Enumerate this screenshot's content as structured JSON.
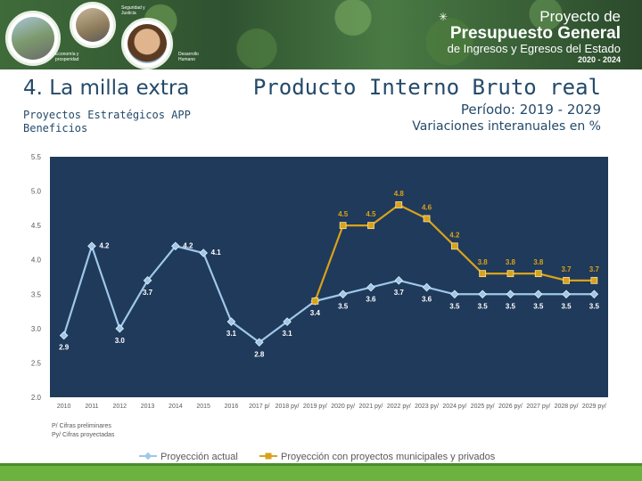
{
  "banner": {
    "tags": [
      "Seguridad y Justicia",
      "Economía y prosperidad",
      "Desarrollo Humano"
    ],
    "brand_line1": "Proyecto de",
    "brand_line2": "Presupuesto General",
    "brand_line3": "de Ingresos y Egresos del Estado",
    "brand_line4": "2020 - 2024"
  },
  "section_title": "4. La milla extra",
  "subtitle_line1": "Proyectos Estratégicos APP",
  "subtitle_line2": "Beneficios",
  "title": "Producto Interno Bruto real",
  "period_line": "Período: 2019 - 2029",
  "variation_line": "Variaciones interanuales en %",
  "colors": {
    "plot_bg": "#1f3a5a",
    "series_actual": "#9fc7ea",
    "series_app": "#d9a21a",
    "axis_text": "#595959",
    "header_text": "#244a6a",
    "footer_green": "#6bb33e"
  },
  "chart_data": {
    "type": "line",
    "x": [
      "2010",
      "2011",
      "2012",
      "2013",
      "2014",
      "2015",
      "2016",
      "2017 p/",
      "2018 py/",
      "2019 py/",
      "2020 py/",
      "2021 py/",
      "2022 py/",
      "2023 py/",
      "2024 py/",
      "2025 py/",
      "2026 py/",
      "2027 py/",
      "2028 py/",
      "2029 py/"
    ],
    "ylim": [
      2.0,
      5.5
    ],
    "yticks": [
      "2.0",
      "2.5",
      "3.0",
      "3.5",
      "4.0",
      "4.5",
      "5.0",
      "5.5"
    ],
    "grid": false,
    "legend_position": "bottom",
    "series": [
      {
        "name": "Proyección actual",
        "values": [
          2.9,
          4.2,
          3.0,
          3.7,
          4.2,
          4.1,
          3.1,
          2.8,
          3.1,
          3.4,
          3.5,
          3.6,
          3.7,
          3.6,
          3.5,
          3.5,
          3.5,
          3.5,
          3.5,
          3.5
        ],
        "labels": [
          "2.9",
          "4.2",
          "3.0",
          "3.7",
          "4.2",
          "4.1",
          "3.1",
          "2.8",
          "3.1",
          "3.4",
          "3.5",
          "3.6",
          "3.7",
          "3.6",
          "3.5",
          "3.5",
          "3.5",
          "3.5",
          "3.5",
          "3.5"
        ]
      },
      {
        "name": "Proyección con proyectos municipales y privados",
        "values": [
          null,
          null,
          null,
          null,
          null,
          null,
          null,
          null,
          null,
          3.4,
          4.5,
          4.5,
          4.8,
          4.6,
          4.2,
          3.8,
          3.8,
          3.8,
          3.7,
          3.7
        ],
        "labels": [
          "",
          "",
          "",
          "",
          "",
          "",
          "",
          "",
          "",
          "",
          "4.5",
          "4.5",
          "4.8",
          "4.6",
          "4.2",
          "3.8",
          "3.8",
          "3.8",
          "3.7",
          "3.7"
        ]
      }
    ],
    "footnotes": [
      "P/ Cifras preliminares",
      "Py/ Cifras proyectadas"
    ]
  }
}
